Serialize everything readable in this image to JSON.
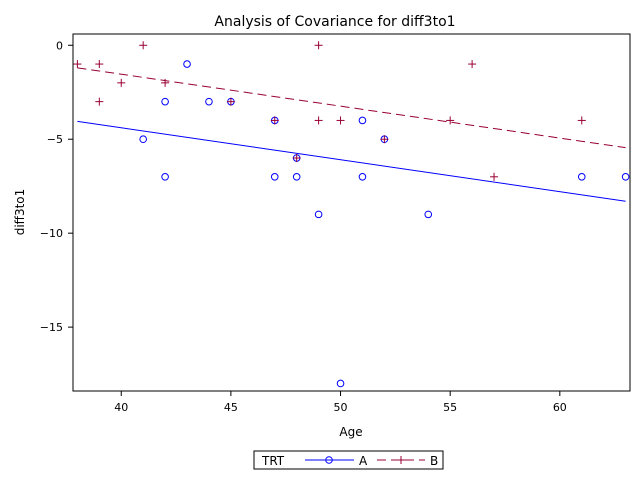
{
  "chart_data": {
    "type": "scatter",
    "title": "Analysis of Covariance for diff3to1",
    "xlabel": "Age",
    "ylabel": "diff3to1",
    "xlim": [
      37.8,
      63.2
    ],
    "ylim": [
      -18.4,
      0.6
    ],
    "xticks": [
      40,
      45,
      50,
      55,
      60
    ],
    "yticks": [
      0,
      -5,
      -10,
      -15
    ],
    "grid": false,
    "legend": {
      "title": "TRT",
      "position": "bottom-center",
      "entries": [
        {
          "name": "A",
          "marker": "circle",
          "line": "solid"
        },
        {
          "name": "B",
          "marker": "plus",
          "line": "dashed"
        }
      ]
    },
    "series": [
      {
        "name": "A",
        "color": "#0000ff",
        "marker": "circle",
        "points": [
          {
            "x": 41,
            "y": -5
          },
          {
            "x": 42,
            "y": -3
          },
          {
            "x": 42,
            "y": -7
          },
          {
            "x": 43,
            "y": -1
          },
          {
            "x": 44,
            "y": -3
          },
          {
            "x": 45,
            "y": -3
          },
          {
            "x": 47,
            "y": -4
          },
          {
            "x": 47,
            "y": -7
          },
          {
            "x": 48,
            "y": -6
          },
          {
            "x": 48,
            "y": -7
          },
          {
            "x": 49,
            "y": -9
          },
          {
            "x": 50,
            "y": -18
          },
          {
            "x": 51,
            "y": -4
          },
          {
            "x": 51,
            "y": -7
          },
          {
            "x": 52,
            "y": -5
          },
          {
            "x": 54,
            "y": -9
          },
          {
            "x": 61,
            "y": -7
          },
          {
            "x": 63,
            "y": -7
          }
        ],
        "fit_line": {
          "x": [
            38,
            63
          ],
          "y": [
            -4.05,
            -8.3
          ],
          "style": "solid"
        }
      },
      {
        "name": "B",
        "color": "#990033",
        "marker": "plus",
        "points": [
          {
            "x": 38,
            "y": -1
          },
          {
            "x": 39,
            "y": -1
          },
          {
            "x": 39,
            "y": -3
          },
          {
            "x": 40,
            "y": -2
          },
          {
            "x": 41,
            "y": 0
          },
          {
            "x": 42,
            "y": -2
          },
          {
            "x": 45,
            "y": -3
          },
          {
            "x": 47,
            "y": -4
          },
          {
            "x": 48,
            "y": -6
          },
          {
            "x": 49,
            "y": 0
          },
          {
            "x": 49,
            "y": -4
          },
          {
            "x": 50,
            "y": -4
          },
          {
            "x": 52,
            "y": -5
          },
          {
            "x": 55,
            "y": -4
          },
          {
            "x": 56,
            "y": -1
          },
          {
            "x": 57,
            "y": -7
          },
          {
            "x": 61,
            "y": -4
          }
        ],
        "fit_line": {
          "x": [
            38,
            63
          ],
          "y": [
            -1.2,
            -5.45
          ],
          "style": "dashed"
        }
      }
    ]
  }
}
